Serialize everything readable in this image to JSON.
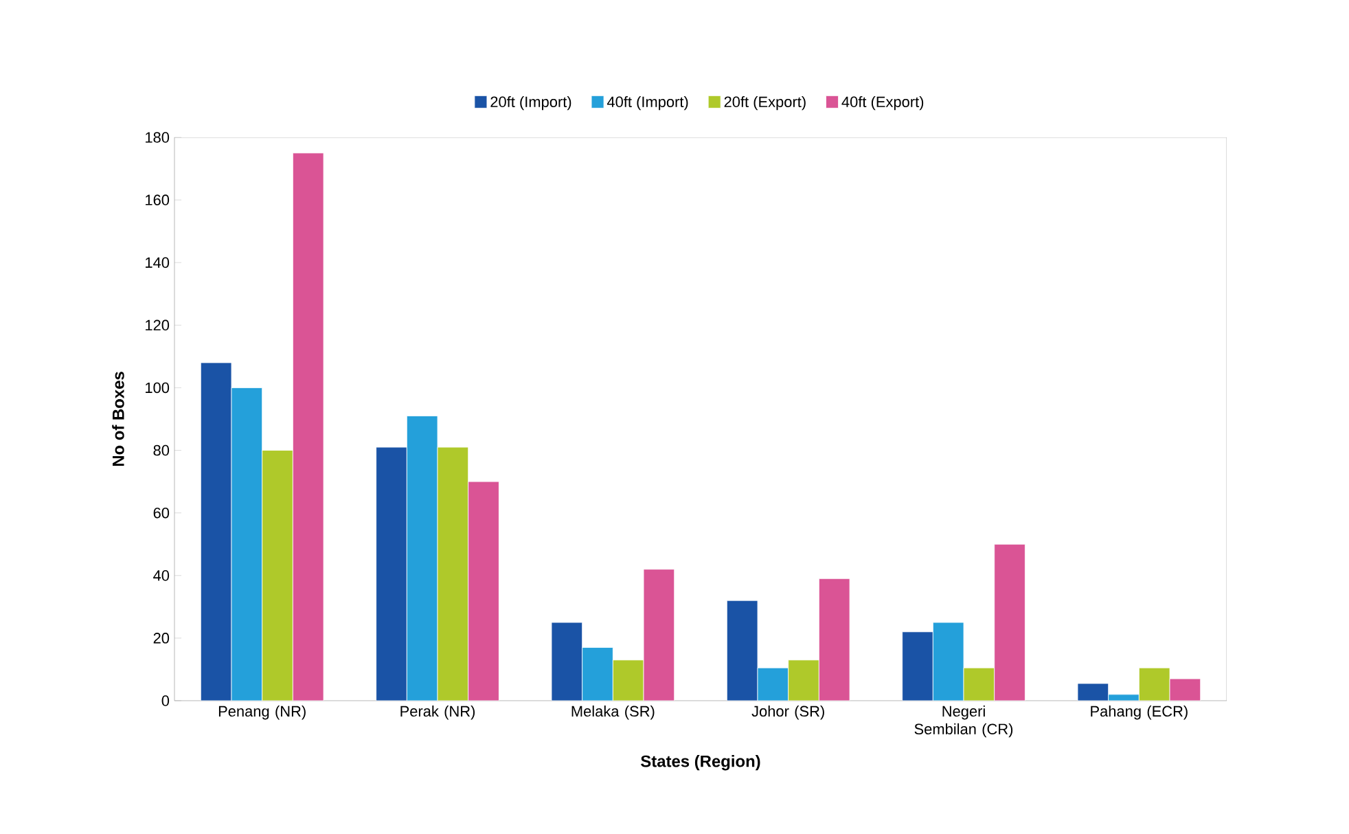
{
  "chart_data": {
    "type": "bar",
    "xlabel": "States (Region)",
    "ylabel": "No of Boxes",
    "categories": [
      "Penang (NR)",
      "Perak (NR)",
      "Melaka (SR)",
      "Johor (SR)",
      "Negeri Sembilan (CR)",
      "Pahang (ECR)"
    ],
    "series": [
      {
        "name": "20ft (Import)",
        "color": "#1a53a6",
        "values": [
          108,
          81,
          25,
          32,
          22,
          5.5
        ]
      },
      {
        "name": "40ft (Import)",
        "color": "#24a0da",
        "values": [
          100,
          91,
          17,
          10.5,
          25,
          2
        ]
      },
      {
        "name": "20ft (Export)",
        "color": "#afc92a",
        "values": [
          80,
          81,
          13,
          13,
          10.5,
          10.5
        ]
      },
      {
        "name": "40ft (Export)",
        "color": "#da5495",
        "values": [
          175,
          70,
          42,
          39,
          50,
          7
        ]
      }
    ],
    "ylim": [
      0,
      180
    ],
    "yticks": [
      0,
      20,
      40,
      60,
      80,
      100,
      120,
      140,
      160,
      180
    ],
    "grid": false,
    "legend": "top"
  }
}
